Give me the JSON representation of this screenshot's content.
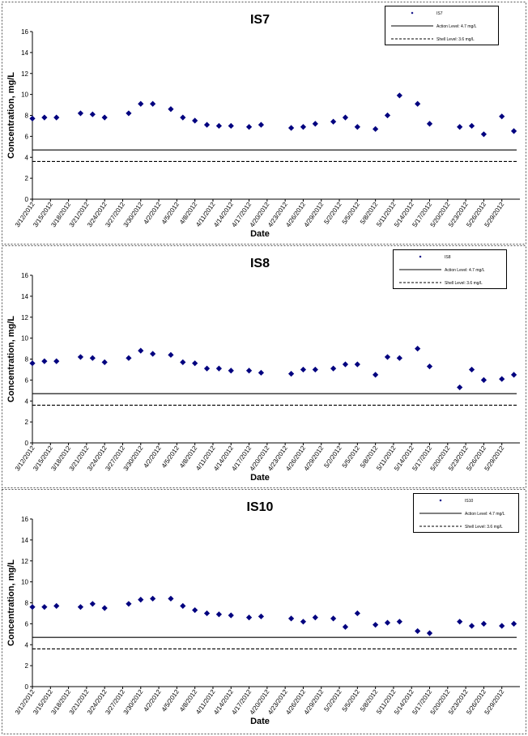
{
  "colors": {
    "marker": "#00007f",
    "line": "#000000",
    "panel_border": "#555555"
  },
  "chart_data": [
    {
      "type": "scatter",
      "title": "IS7",
      "xlabel": "Date",
      "ylabel": "Concentration, mg/L",
      "ylim": [
        0,
        16
      ],
      "yticks": [
        "0",
        "2",
        "4",
        "6",
        "8",
        "10",
        "12",
        "14",
        "16"
      ],
      "xlim": [
        "3/12/2012",
        "6/1/2012"
      ],
      "x_tick_labels": [
        "3/12/2012",
        "3/15/2012",
        "3/18/2012",
        "3/21/2012",
        "3/24/2012",
        "3/27/2012",
        "3/30/2012",
        "4/2/2012",
        "4/5/2012",
        "4/8/2012",
        "4/11/2012",
        "4/14/2012",
        "4/17/2012",
        "4/20/2012",
        "4/23/2012",
        "4/26/2012",
        "4/29/2012",
        "5/2/2012",
        "5/5/2012",
        "5/8/2012",
        "5/11/2012",
        "5/14/2012",
        "5/17/2012",
        "5/20/2012",
        "5/23/2012",
        "5/26/2012",
        "5/29/2012"
      ],
      "grid": false,
      "legend_position": "top-right",
      "series": [
        {
          "name": "IS7",
          "kind": "marker",
          "points": [
            [
              "3/12/2012",
              7.7
            ],
            [
              "3/14/2012",
              7.8
            ],
            [
              "3/16/2012",
              7.8
            ],
            [
              "3/20/2012",
              8.2
            ],
            [
              "3/22/2012",
              8.1
            ],
            [
              "3/24/2012",
              7.8
            ],
            [
              "3/28/2012",
              8.2
            ],
            [
              "3/30/2012",
              9.1
            ],
            [
              "4/1/2012",
              9.1
            ],
            [
              "4/4/2012",
              8.6
            ],
            [
              "4/6/2012",
              7.8
            ],
            [
              "4/8/2012",
              7.5
            ],
            [
              "4/10/2012",
              7.1
            ],
            [
              "4/12/2012",
              7.0
            ],
            [
              "4/14/2012",
              7.0
            ],
            [
              "4/17/2012",
              6.9
            ],
            [
              "4/19/2012",
              7.1
            ],
            [
              "4/24/2012",
              6.8
            ],
            [
              "4/26/2012",
              6.9
            ],
            [
              "4/28/2012",
              7.2
            ],
            [
              "5/1/2012",
              7.4
            ],
            [
              "5/3/2012",
              7.8
            ],
            [
              "5/5/2012",
              6.9
            ],
            [
              "5/8/2012",
              6.7
            ],
            [
              "5/10/2012",
              8.0
            ],
            [
              "5/12/2012",
              9.9
            ],
            [
              "5/15/2012",
              9.1
            ],
            [
              "5/17/2012",
              7.2
            ],
            [
              "5/22/2012",
              6.9
            ],
            [
              "5/24/2012",
              7.0
            ],
            [
              "5/26/2012",
              6.2
            ],
            [
              "5/29/2012",
              7.9
            ],
            [
              "5/31/2012",
              6.5
            ]
          ]
        },
        {
          "name": "Action Level: 4.7 mg/L",
          "kind": "solid",
          "value": 4.7
        },
        {
          "name": "Shell Level: 3.6 mg/L",
          "kind": "dashed",
          "value": 3.6
        }
      ]
    },
    {
      "type": "scatter",
      "title": "IS8",
      "xlabel": "Date",
      "ylabel": "Concentration, mg/L",
      "ylim": [
        0,
        16
      ],
      "yticks": [
        "0",
        "2",
        "4",
        "6",
        "8",
        "10",
        "12",
        "14",
        "16"
      ],
      "xlim": [
        "3/12/2012",
        "6/1/2012"
      ],
      "x_tick_labels": [
        "3/12/2012",
        "3/15/2012",
        "3/18/2012",
        "3/21/2012",
        "3/24/2012",
        "3/27/2012",
        "3/30/2012",
        "4/2/2012",
        "4/5/2012",
        "4/8/2012",
        "4/11/2012",
        "4/14/2012",
        "4/17/2012",
        "4/20/2012",
        "4/23/2012",
        "4/26/2012",
        "4/29/2012",
        "5/2/2012",
        "5/5/2012",
        "5/8/2012",
        "5/11/2012",
        "5/14/2012",
        "5/17/2012",
        "5/20/2012",
        "5/23/2012",
        "5/26/2012",
        "5/29/2012"
      ],
      "grid": false,
      "legend_position": "top-right",
      "series": [
        {
          "name": "IS8",
          "kind": "marker",
          "points": [
            [
              "3/12/2012",
              7.6
            ],
            [
              "3/14/2012",
              7.8
            ],
            [
              "3/16/2012",
              7.8
            ],
            [
              "3/20/2012",
              8.2
            ],
            [
              "3/22/2012",
              8.1
            ],
            [
              "3/24/2012",
              7.7
            ],
            [
              "3/28/2012",
              8.1
            ],
            [
              "3/30/2012",
              8.8
            ],
            [
              "4/1/2012",
              8.5
            ],
            [
              "4/4/2012",
              8.4
            ],
            [
              "4/6/2012",
              7.7
            ],
            [
              "4/8/2012",
              7.6
            ],
            [
              "4/10/2012",
              7.1
            ],
            [
              "4/12/2012",
              7.1
            ],
            [
              "4/14/2012",
              6.9
            ],
            [
              "4/17/2012",
              6.9
            ],
            [
              "4/19/2012",
              6.7
            ],
            [
              "4/24/2012",
              6.6
            ],
            [
              "4/26/2012",
              7.0
            ],
            [
              "4/28/2012",
              7.0
            ],
            [
              "5/1/2012",
              7.1
            ],
            [
              "5/3/2012",
              7.5
            ],
            [
              "5/5/2012",
              7.5
            ],
            [
              "5/8/2012",
              6.5
            ],
            [
              "5/10/2012",
              8.2
            ],
            [
              "5/12/2012",
              8.1
            ],
            [
              "5/15/2012",
              9.0
            ],
            [
              "5/17/2012",
              7.3
            ],
            [
              "5/22/2012",
              5.3
            ],
            [
              "5/24/2012",
              7.0
            ],
            [
              "5/26/2012",
              6.0
            ],
            [
              "5/29/2012",
              6.1
            ],
            [
              "5/31/2012",
              6.5
            ]
          ]
        },
        {
          "name": "Action Level: 4.7 mg/L",
          "kind": "solid",
          "value": 4.7
        },
        {
          "name": "Shell Level: 3.6 mg/L",
          "kind": "dashed",
          "value": 3.6
        }
      ]
    },
    {
      "type": "scatter",
      "title": "IS10",
      "xlabel": "Date",
      "ylabel": "Concentration, mg/L",
      "ylim": [
        0,
        16
      ],
      "yticks": [
        "0",
        "2",
        "4",
        "6",
        "8",
        "10",
        "12",
        "14",
        "16"
      ],
      "xlim": [
        "3/12/2012",
        "6/1/2012"
      ],
      "x_tick_labels": [
        "3/12/2012",
        "3/15/2012",
        "3/18/2012",
        "3/21/2012",
        "3/24/2012",
        "3/27/2012",
        "3/30/2012",
        "4/2/2012",
        "4/5/2012",
        "4/8/2012",
        "4/11/2012",
        "4/14/2012",
        "4/17/2012",
        "4/20/2012",
        "4/23/2012",
        "4/26/2012",
        "4/29/2012",
        "5/2/2012",
        "5/5/2012",
        "5/8/2012",
        "5/11/2012",
        "5/14/2012",
        "5/17/2012",
        "5/20/2012",
        "5/23/2012",
        "5/26/2012",
        "5/29/2012"
      ],
      "grid": false,
      "legend_position": "top-right",
      "series": [
        {
          "name": "IS10",
          "kind": "marker",
          "points": [
            [
              "3/12/2012",
              7.6
            ],
            [
              "3/14/2012",
              7.6
            ],
            [
              "3/16/2012",
              7.7
            ],
            [
              "3/20/2012",
              7.6
            ],
            [
              "3/22/2012",
              7.9
            ],
            [
              "3/24/2012",
              7.5
            ],
            [
              "3/28/2012",
              7.9
            ],
            [
              "3/30/2012",
              8.3
            ],
            [
              "4/1/2012",
              8.4
            ],
            [
              "4/4/2012",
              8.4
            ],
            [
              "4/6/2012",
              7.7
            ],
            [
              "4/8/2012",
              7.3
            ],
            [
              "4/10/2012",
              7.0
            ],
            [
              "4/12/2012",
              6.9
            ],
            [
              "4/14/2012",
              6.8
            ],
            [
              "4/17/2012",
              6.6
            ],
            [
              "4/19/2012",
              6.7
            ],
            [
              "4/24/2012",
              6.5
            ],
            [
              "4/26/2012",
              6.2
            ],
            [
              "4/28/2012",
              6.6
            ],
            [
              "5/1/2012",
              6.5
            ],
            [
              "5/3/2012",
              5.7
            ],
            [
              "5/5/2012",
              7.0
            ],
            [
              "5/8/2012",
              5.9
            ],
            [
              "5/10/2012",
              6.1
            ],
            [
              "5/12/2012",
              6.2
            ],
            [
              "5/15/2012",
              5.3
            ],
            [
              "5/17/2012",
              5.1
            ],
            [
              "5/22/2012",
              6.2
            ],
            [
              "5/24/2012",
              5.8
            ],
            [
              "5/26/2012",
              6.0
            ],
            [
              "5/29/2012",
              5.8
            ],
            [
              "5/31/2012",
              6.0
            ]
          ]
        },
        {
          "name": "Action Level: 4.7 mg/L",
          "kind": "solid",
          "value": 4.7
        },
        {
          "name": "Shell Level: 3.6 mg/L",
          "kind": "dashed",
          "value": 3.6
        }
      ]
    }
  ]
}
